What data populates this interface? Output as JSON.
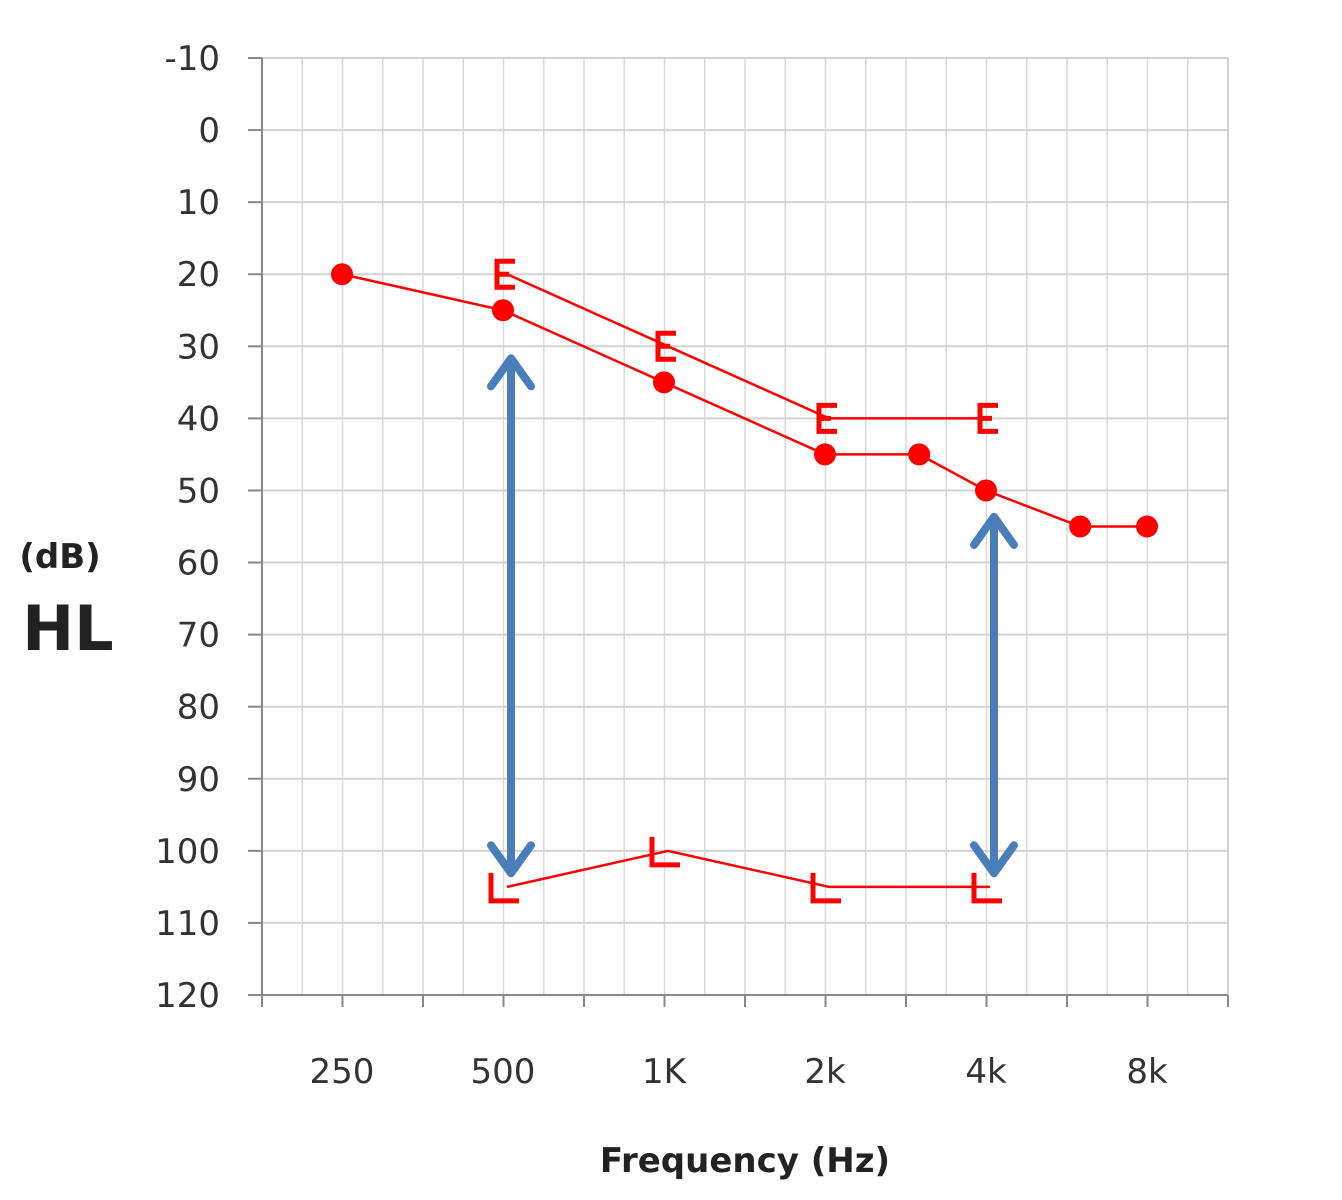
{
  "chart_data": {
    "type": "line",
    "ylabel_unit": "(dB)",
    "ylabel": "HL",
    "xlabel": "Frequency (Hz)",
    "x_ticks": [
      "250",
      "500",
      "1K",
      "2k",
      "4k",
      "8k"
    ],
    "y_ticks": [
      "-10",
      "0",
      "10",
      "20",
      "30",
      "40",
      "50",
      "60",
      "70",
      "80",
      "90",
      "100",
      "110",
      "120"
    ],
    "ylim": [
      -10,
      120
    ],
    "y_inverted": true,
    "x_scale": "log2 (half-octave gridlines)",
    "grid": true,
    "series": [
      {
        "marker": "filled-circle",
        "color": "#ff0000",
        "points": [
          [
            250,
            20
          ],
          [
            500,
            25
          ],
          [
            1000,
            35
          ],
          [
            2000,
            45
          ],
          [
            3000,
            45
          ],
          [
            4000,
            50
          ],
          [
            6000,
            55
          ],
          [
            8000,
            55
          ]
        ]
      },
      {
        "marker": "bracket-E",
        "color": "#ff0000",
        "points": [
          [
            500,
            20
          ],
          [
            1000,
            30
          ],
          [
            2000,
            40
          ],
          [
            4000,
            40
          ]
        ]
      },
      {
        "marker": "bracket-L",
        "color": "#ff0000",
        "points": [
          [
            500,
            105
          ],
          [
            1000,
            100
          ],
          [
            2000,
            105
          ],
          [
            4000,
            105
          ]
        ]
      }
    ],
    "annotations": [
      {
        "type": "double-arrow",
        "color": "#4a7ebb",
        "x": 500,
        "from": 30,
        "to": 102
      },
      {
        "type": "double-arrow",
        "color": "#4a7ebb",
        "x": 4000,
        "from": 52,
        "to": 102
      }
    ]
  }
}
